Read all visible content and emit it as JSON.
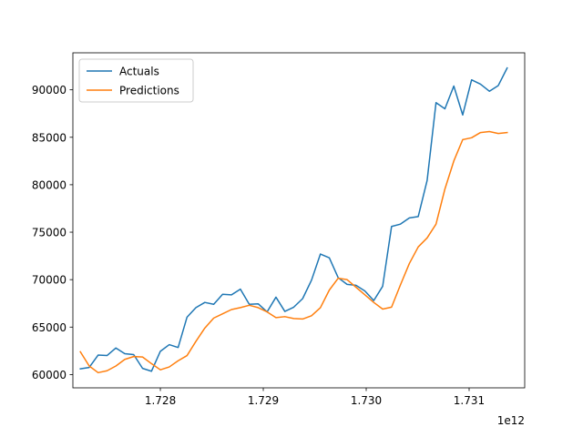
{
  "chart_data": {
    "type": "line",
    "title": "",
    "xlabel": "",
    "ylabel": "",
    "x_offset_label": "1e12",
    "xlim": [
      1727150000000,
      1731540000000
    ],
    "ylim": [
      58600,
      93900
    ],
    "x_ticks": [
      1728000000000,
      1729000000000,
      1730000000000,
      1731000000000
    ],
    "x_tick_labels": [
      "1.728",
      "1.729",
      "1.730",
      "1.731"
    ],
    "y_ticks": [
      60000,
      65000,
      70000,
      75000,
      80000,
      85000,
      90000
    ],
    "y_tick_labels": [
      "60000",
      "65000",
      "70000",
      "75000",
      "80000",
      "85000",
      "90000"
    ],
    "grid": false,
    "legend_position": "top-left",
    "x": [
      1727222400000,
      1727308800000,
      1727395200000,
      1727481600000,
      1727568000000,
      1727654400000,
      1727740800000,
      1727827200000,
      1727913600000,
      1728000000000,
      1728086400000,
      1728172800000,
      1728259200000,
      1728345600000,
      1728432000000,
      1728518400000,
      1728604800000,
      1728691200000,
      1728777600000,
      1728864000000,
      1728950400000,
      1729036800000,
      1729123200000,
      1729209600000,
      1729296000000,
      1729382400000,
      1729468800000,
      1729555200000,
      1729641600000,
      1729728000000,
      1729814400000,
      1729900800000,
      1729987200000,
      1730073600000,
      1730160000000,
      1730246400000,
      1730332800000,
      1730419200000,
      1730505600000,
      1730592000000,
      1730678400000,
      1730764800000,
      1730851200000,
      1730937600000,
      1731024000000,
      1731110400000,
      1731196800000,
      1731283200000,
      1731369600000
    ],
    "series": [
      {
        "name": "Actuals",
        "color": "#1f77b4",
        "values": [
          60600,
          60750,
          62050,
          62000,
          62800,
          62200,
          62100,
          60650,
          60350,
          62450,
          63150,
          62850,
          66050,
          67050,
          67600,
          67400,
          68450,
          68400,
          69000,
          67400,
          67450,
          66600,
          68150,
          66650,
          67100,
          68000,
          69950,
          72700,
          72300,
          70200,
          69500,
          69400,
          68800,
          67800,
          69300,
          75600,
          75850,
          76500,
          76650,
          80450,
          88650,
          88000,
          90400,
          87350,
          91050,
          90600,
          89850,
          90450,
          92300
        ]
      },
      {
        "name": "Predictions",
        "color": "#ff7f0e",
        "values": [
          62400,
          60900,
          60200,
          60400,
          60900,
          61600,
          61900,
          61850,
          61150,
          60500,
          60800,
          61450,
          62000,
          63500,
          64900,
          65950,
          66400,
          66850,
          67050,
          67300,
          67050,
          66600,
          66000,
          66100,
          65900,
          65850,
          66200,
          67050,
          68900,
          70150,
          70000,
          69200,
          68400,
          67600,
          66900,
          67100,
          69450,
          71700,
          73450,
          74400,
          75850,
          79550,
          82500,
          84750,
          84950,
          85500,
          85600,
          85400,
          85500
        ]
      }
    ]
  }
}
